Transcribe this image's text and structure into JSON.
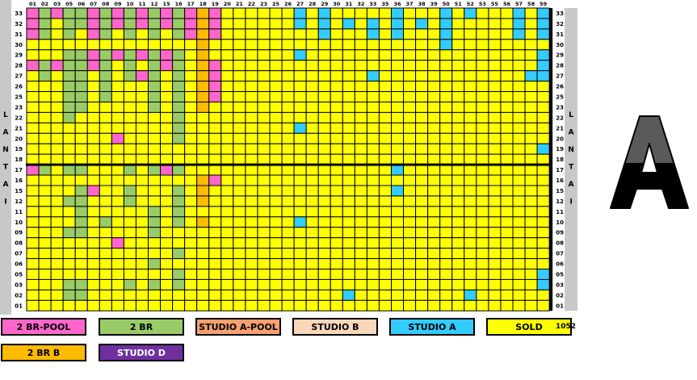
{
  "colors": {
    "2br_pool": "#ff66cc",
    "2br": "#99cc66",
    "studio_a_pool": "#f5a070",
    "studio_b": "#f8d8b8",
    "studio_a": "#33ccff",
    "sold": "#ffff00",
    "2br_b": "#ffbb00",
    "studio_d": "#7030a0"
  },
  "columns": [
    "01",
    "02",
    "03",
    "05",
    "06",
    "07",
    "08",
    "09",
    "10",
    "11",
    "12",
    "15",
    "16",
    "17",
    "18",
    "19",
    "20",
    "21",
    "22",
    "23",
    "25",
    "26",
    "27",
    "28",
    "29",
    "30",
    "31",
    "32",
    "33",
    "35",
    "36",
    "37",
    "38",
    "39",
    "50",
    "51",
    "52",
    "53",
    "55",
    "56",
    "57",
    "58",
    "59"
  ],
  "floors": [
    "33",
    "32",
    "31",
    "30",
    "29",
    "28",
    "27",
    "26",
    "25",
    "23",
    "22",
    "21",
    "20",
    "19",
    "18",
    "17",
    "16",
    "15",
    "12",
    "11",
    "10",
    "09",
    "08",
    "07",
    "06",
    "05",
    "03",
    "02",
    "01"
  ],
  "tower_letters": [
    "L",
    "A",
    "N",
    "T",
    "A",
    "I"
  ],
  "wing_label": "A",
  "total_count": "1052",
  "legend": [
    {
      "label": "2 BR-POOL",
      "key": "2br_pool"
    },
    {
      "label": "2 BR",
      "key": "2br"
    },
    {
      "label": "STUDIO A-POOL",
      "key": "studio_a_pool"
    },
    {
      "label": "STUDIO B",
      "key": "studio_b"
    },
    {
      "label": "STUDIO A",
      "key": "studio_a"
    },
    {
      "label": "SOLD",
      "key": "sold"
    },
    {
      "label": "2 BR B",
      "key": "2br_b"
    },
    {
      "label": "STUDIO D",
      "key": "studio_d"
    }
  ],
  "units": {
    "33": {
      "01": "2br_pool",
      "02": "2br",
      "03": "2br_pool",
      "05": "2br",
      "06": "2br",
      "07": "2br_pool",
      "08": "2br",
      "09": "2br_pool",
      "10": "2br",
      "11": "2br_pool",
      "12": "2br",
      "15": "2br_pool",
      "16": "2br",
      "17": "2br_pool",
      "18": "2br_b",
      "19": "2br_pool",
      "27": "studio_a",
      "29": "studio_a",
      "36": "studio_a",
      "50": "studio_a",
      "52": "studio_a",
      "57": "studio_a",
      "59": "studio_a"
    },
    "32": {
      "01": "2br_pool",
      "02": "2br",
      "05": "2br",
      "06": "2br",
      "07": "2br_pool",
      "08": "2br",
      "09": "2br_pool",
      "10": "2br",
      "11": "2br_pool",
      "12": "2br",
      "15": "2br_pool",
      "16": "2br",
      "17": "2br_pool",
      "18": "2br_b",
      "19": "2br_pool",
      "27": "studio_a",
      "29": "studio_a",
      "31": "studio_a",
      "33": "studio_a",
      "36": "studio_a",
      "38": "studio_a",
      "50": "studio_a",
      "57": "studio_a",
      "59": "studio_a"
    },
    "31": {
      "01": "2br_pool",
      "02": "2br",
      "05": "2br",
      "07": "2br_pool",
      "08": "2br",
      "10": "2br",
      "12": "2br",
      "16": "2br",
      "17": "2br_pool",
      "18": "2br_b",
      "19": "2br_pool",
      "29": "studio_a",
      "33": "studio_a",
      "36": "studio_a",
      "50": "studio_a",
      "57": "studio_a",
      "59": "studio_a"
    },
    "30": {
      "18": "2br_b",
      "50": "studio_a"
    },
    "29": {
      "05": "2br",
      "06": "2br",
      "07": "2br_pool",
      "08": "2br",
      "09": "2br_pool",
      "10": "2br",
      "11": "2br_pool",
      "12": "2br",
      "15": "2br_pool",
      "16": "2br",
      "18": "2br_b",
      "27": "studio_a",
      "59": "studio_a"
    },
    "28": {
      "01": "2br_pool",
      "02": "2br",
      "03": "2br_pool",
      "05": "2br",
      "06": "2br",
      "07": "2br_pool",
      "08": "2br",
      "10": "2br",
      "12": "2br",
      "15": "2br_pool",
      "16": "2br",
      "18": "2br_b",
      "19": "2br_pool",
      "59": "studio_a"
    },
    "27": {
      "02": "2br",
      "05": "2br",
      "06": "2br",
      "08": "2br",
      "10": "2br",
      "11": "2br_pool",
      "12": "2br",
      "16": "2br",
      "18": "2br_b",
      "19": "2br_pool",
      "33": "studio_a",
      "58": "studio_a",
      "59": "studio_a"
    },
    "26": {
      "05": "2br",
      "06": "2br",
      "08": "2br",
      "12": "2br",
      "16": "2br",
      "18": "2br_b",
      "19": "2br_pool"
    },
    "25": {
      "05": "2br",
      "06": "2br",
      "08": "2br",
      "12": "2br",
      "16": "2br",
      "18": "2br_b",
      "19": "2br_pool"
    },
    "23": {
      "05": "2br",
      "06": "2br",
      "12": "2br",
      "16": "2br",
      "18": "2br_b"
    },
    "22": {
      "05": "2br",
      "16": "2br"
    },
    "21": {
      "16": "2br",
      "27": "studio_a"
    },
    "20": {
      "09": "2br_pool",
      "16": "2br"
    },
    "19": {
      "59": "studio_a"
    },
    "18": {},
    "17": {
      "01": "2br_pool",
      "02": "2br",
      "05": "2br",
      "06": "2br",
      "10": "2br",
      "12": "2br",
      "15": "2br_pool",
      "16": "2br",
      "36": "studio_a"
    },
    "16": {
      "18": "2br_b",
      "19": "2br_pool"
    },
    "15": {
      "06": "2br",
      "07": "2br_pool",
      "10": "2br",
      "16": "2br",
      "18": "2br_b",
      "36": "studio_a"
    },
    "12": {
      "05": "2br",
      "06": "2br",
      "10": "2br",
      "16": "2br",
      "18": "2br_b"
    },
    "11": {
      "06": "2br",
      "12": "2br",
      "16": "2br"
    },
    "10": {
      "06": "2br",
      "08": "2br",
      "12": "2br",
      "16": "2br",
      "18": "2br_b",
      "27": "studio_a"
    },
    "09": {
      "05": "2br",
      "06": "2br",
      "12": "2br"
    },
    "08": {
      "09": "2br_pool"
    },
    "07": {
      "16": "2br"
    },
    "06": {
      "12": "2br"
    },
    "05": {
      "16": "2br",
      "59": "studio_a"
    },
    "03": {
      "05": "2br",
      "06": "2br",
      "10": "2br",
      "12": "2br",
      "16": "2br",
      "59": "studio_a"
    },
    "02": {
      "05": "2br",
      "06": "2br",
      "31": "studio_a",
      "52": "studio_a"
    },
    "01": {}
  }
}
